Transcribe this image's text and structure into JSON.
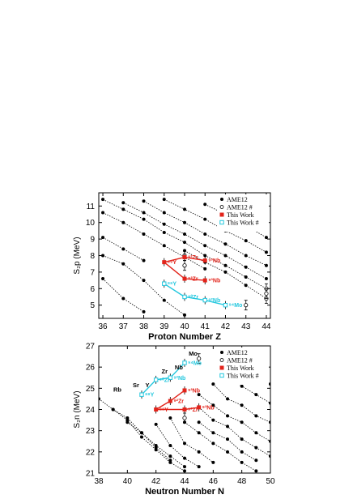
{
  "chart_data": [
    {
      "type": "scatter",
      "xlabel": "Proton Number Z",
      "ylabel": "S₂p (MeV)",
      "xlim": [
        35.8,
        44.2
      ],
      "ylim": [
        4.2,
        11.8
      ],
      "xticks": [
        36,
        37,
        38,
        39,
        40,
        41,
        42,
        43,
        44
      ],
      "yticks": [
        5,
        6,
        7,
        8,
        9,
        10,
        11
      ],
      "legend_position": "top-right",
      "legend": [
        "AME12",
        "AME12 #",
        "This Work",
        "This Work #"
      ],
      "ame_chains": [
        [
          [
            36,
            11.4
          ],
          [
            37,
            10.8
          ],
          [
            38,
            10.2
          ],
          [
            39,
            9.4
          ],
          [
            40,
            8.8
          ],
          [
            41,
            8.0
          ],
          [
            42,
            7.4
          ],
          [
            43,
            6.7
          ],
          [
            44,
            6.0
          ]
        ],
        [
          [
            36,
            10.6
          ],
          [
            37,
            10.0
          ],
          [
            38,
            9.3
          ],
          [
            39,
            8.6
          ],
          [
            40,
            7.9
          ],
          [
            41,
            7.2
          ]
        ],
        [
          [
            36,
            9.1
          ],
          [
            37,
            8.4
          ],
          [
            38,
            7.7
          ]
        ],
        [
          [
            36,
            8.0
          ],
          [
            37,
            7.5
          ],
          [
            38,
            6.5
          ],
          [
            39,
            5.3
          ],
          [
            40,
            4.4
          ]
        ],
        [
          [
            36,
            6.6
          ],
          [
            37,
            5.4
          ],
          [
            38,
            4.6
          ]
        ],
        [
          [
            37,
            11.2
          ],
          [
            38,
            10.6
          ],
          [
            39,
            9.9
          ],
          [
            40,
            9.3
          ],
          [
            41,
            8.6
          ],
          [
            42,
            8.0
          ],
          [
            43,
            7.3
          ],
          [
            44,
            6.6
          ]
        ],
        [
          [
            38,
            11.3
          ],
          [
            39,
            10.6
          ],
          [
            40,
            10.0
          ],
          [
            41,
            9.3
          ],
          [
            42,
            8.7
          ],
          [
            43,
            8.0
          ],
          [
            44,
            7.4
          ]
        ],
        [
          [
            39,
            11.4
          ],
          [
            40,
            10.8
          ],
          [
            41,
            10.2
          ],
          [
            42,
            9.5
          ],
          [
            43,
            8.9
          ],
          [
            44,
            8.2
          ]
        ],
        [
          [
            41,
            11.1
          ],
          [
            42,
            10.5
          ],
          [
            43,
            9.8
          ],
          [
            44,
            9.1
          ]
        ],
        [
          [
            43,
            11.2
          ],
          [
            44,
            10.7
          ]
        ],
        [
          [
            40,
            8.3
          ],
          [
            41,
            7.6
          ],
          [
            42,
            7.0
          ],
          [
            43,
            6.2
          ],
          [
            44,
            5.4
          ]
        ]
      ],
      "ame_hash_points": [
        [
          43,
          5.0
        ],
        [
          44,
          5.4
        ],
        [
          44,
          6.0
        ],
        [
          44,
          5.7
        ],
        [
          40,
          8.0
        ],
        [
          40,
          7.4
        ]
      ],
      "this_work": [
        {
          "label": "⁹²Zr",
          "x": 40,
          "y": 7.9
        },
        {
          "label": "⁹³Nb",
          "x": 41,
          "y": 7.7
        },
        {
          "label": "⁹³Nb",
          "x": 41,
          "y": 6.5
        },
        {
          "label": "⁹³Zr",
          "x": 40,
          "y": 6.6
        },
        {
          "label": "⁸⁹Y",
          "x": 39,
          "y": 7.6
        }
      ],
      "this_work_hash": [
        {
          "label": "⁸⁸Y",
          "x": 39,
          "y": 6.3
        },
        {
          "label": "⁹⁰Zr",
          "x": 40,
          "y": 5.5
        },
        {
          "label": "⁹²Nb",
          "x": 41,
          "y": 5.3
        },
        {
          "label": "⁹⁴Mo",
          "x": 42,
          "y": 5.0
        }
      ]
    },
    {
      "type": "scatter",
      "xlabel": "Neutron Number N",
      "ylabel": "S₂n (MeV)",
      "xlim": [
        38,
        50
      ],
      "ylim": [
        21,
        27
      ],
      "xticks": [
        38,
        40,
        42,
        44,
        46,
        48,
        50
      ],
      "yticks": [
        21,
        22,
        23,
        24,
        25,
        26,
        27
      ],
      "legend_position": "top-right",
      "legend": [
        "AME12",
        "AME12 #",
        "This Work",
        "This Work #"
      ],
      "element_labels": [
        {
          "text": "Rb",
          "x": 39.3,
          "y": 24.85
        },
        {
          "text": "Sr",
          "x": 40.6,
          "y": 25.05
        },
        {
          "text": "Y",
          "x": 41.4,
          "y": 25.05
        },
        {
          "text": "Zr",
          "x": 42.6,
          "y": 25.7
        },
        {
          "text": "Nb",
          "x": 43.6,
          "y": 25.9
        },
        {
          "text": "Mo",
          "x": 44.6,
          "y": 26.55
        }
      ],
      "ame_chains": [
        [
          [
            38,
            24.5
          ],
          [
            39,
            24.0
          ],
          [
            40,
            23.5
          ],
          [
            41,
            22.7
          ],
          [
            42,
            22.1
          ],
          [
            43,
            21.5
          ],
          [
            44,
            21.1
          ]
        ],
        [
          [
            39,
            24.0
          ],
          [
            40,
            23.6
          ],
          [
            41,
            22.9
          ],
          [
            42,
            22.2
          ],
          [
            43,
            21.6
          ]
        ],
        [
          [
            40,
            23.4
          ],
          [
            41,
            22.9
          ],
          [
            42,
            22.3
          ],
          [
            43,
            21.8
          ],
          [
            44,
            21.3
          ]
        ],
        [
          [
            42,
            23.3
          ],
          [
            43,
            22.3
          ],
          [
            44,
            21.7
          ],
          [
            45,
            21.3
          ]
        ],
        [
          [
            43,
            23.6
          ],
          [
            44,
            22.4
          ],
          [
            45,
            22.0
          ],
          [
            46,
            21.5
          ]
        ],
        [
          [
            44,
            23.4
          ],
          [
            45,
            22.9
          ],
          [
            46,
            22.4
          ],
          [
            47,
            22.0
          ],
          [
            48,
            21.5
          ],
          [
            49,
            21.1
          ]
        ],
        [
          [
            45,
            23.4
          ],
          [
            46,
            22.9
          ],
          [
            47,
            22.6
          ],
          [
            48,
            22.0
          ],
          [
            49,
            21.6
          ]
        ],
        [
          [
            45,
            24.1
          ],
          [
            46,
            23.5
          ],
          [
            47,
            23.2
          ],
          [
            48,
            22.6
          ],
          [
            49,
            22.2
          ],
          [
            50,
            21.8
          ]
        ],
        [
          [
            45,
            24.7
          ],
          [
            46,
            24.2
          ],
          [
            47,
            23.7
          ],
          [
            48,
            23.4
          ],
          [
            49,
            22.9
          ],
          [
            50,
            22.5
          ]
        ],
        [
          [
            46,
            25.2
          ],
          [
            47,
            24.5
          ],
          [
            48,
            24.2
          ],
          [
            49,
            23.7
          ],
          [
            50,
            23.4
          ]
        ],
        [
          [
            47,
            25.6
          ],
          [
            48,
            25.1
          ],
          [
            49,
            24.7
          ],
          [
            50,
            24.3
          ]
        ],
        [
          [
            48,
            26.1
          ],
          [
            49,
            25.6
          ],
          [
            50,
            25.2
          ]
        ]
      ],
      "ame_hash_points": [
        [
          44,
          23.6
        ],
        [
          45,
          26.4
        ]
      ],
      "this_work": [
        {
          "label": "⁸⁹Y",
          "x": 42,
          "y": 24.0
        },
        {
          "label": "⁹²Zr",
          "x": 43,
          "y": 24.4
        },
        {
          "label": "⁹³Zr",
          "x": 44,
          "y": 24.0
        },
        {
          "label": "⁹³Nb",
          "x": 44,
          "y": 24.9
        },
        {
          "label": "⁹³Nb",
          "x": 45,
          "y": 24.1
        }
      ],
      "this_work_hash": [
        {
          "label": "⁸⁸Y",
          "x": 41,
          "y": 24.7
        },
        {
          "label": "⁹⁰Zr",
          "x": 42,
          "y": 25.4
        },
        {
          "label": "⁹²Nb",
          "x": 43,
          "y": 25.5
        },
        {
          "label": "⁹⁴Mo",
          "x": 44,
          "y": 26.2
        }
      ]
    }
  ],
  "colors": {
    "red": "#e2231a",
    "cyan": "#22c7de",
    "black": "#000000"
  }
}
